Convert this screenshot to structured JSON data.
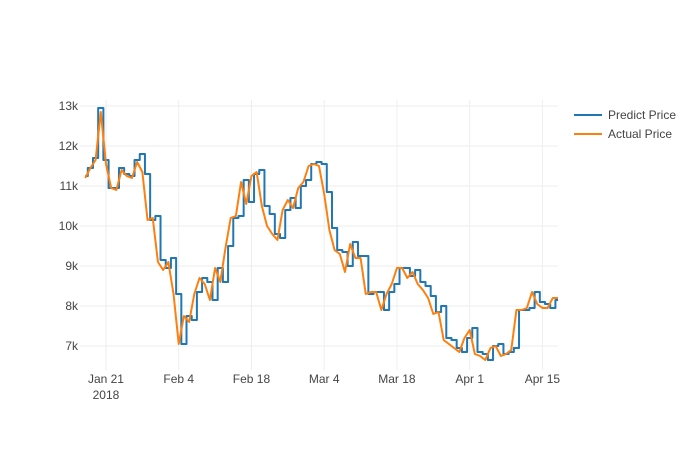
{
  "chart_data": {
    "type": "line",
    "xaxis": {
      "type": "date",
      "range": [
        "2018-01-16",
        "2018-04-18"
      ],
      "ticks": [
        {
          "date": "2018-01-21",
          "label": "Jan 21",
          "sublabel": "2018"
        },
        {
          "date": "2018-02-04",
          "label": "Feb 4",
          "sublabel": ""
        },
        {
          "date": "2018-02-18",
          "label": "Feb 18",
          "sublabel": ""
        },
        {
          "date": "2018-03-04",
          "label": "Mar 4",
          "sublabel": ""
        },
        {
          "date": "2018-03-18",
          "label": "Mar 18",
          "sublabel": ""
        },
        {
          "date": "2018-04-01",
          "label": "Apr 1",
          "sublabel": ""
        },
        {
          "date": "2018-04-15",
          "label": "Apr 15",
          "sublabel": ""
        }
      ]
    },
    "yaxis": {
      "range": [
        6400,
        13150
      ],
      "ticks": [
        {
          "value": 7000,
          "label": "7k"
        },
        {
          "value": 8000,
          "label": "8k"
        },
        {
          "value": 9000,
          "label": "9k"
        },
        {
          "value": 10000,
          "label": "10k"
        },
        {
          "value": 11000,
          "label": "11k"
        },
        {
          "value": 12000,
          "label": "12k"
        },
        {
          "value": 13000,
          "label": "13k"
        }
      ]
    },
    "grid": true,
    "legend_position": "top-right",
    "series": [
      {
        "name": "Predict Price",
        "color": "#1f77b4",
        "shape": "step",
        "x": [
          "2018-01-17",
          "2018-01-18",
          "2018-01-19",
          "2018-01-20",
          "2018-01-21",
          "2018-01-22",
          "2018-01-23",
          "2018-01-24",
          "2018-01-25",
          "2018-01-26",
          "2018-01-27",
          "2018-01-28",
          "2018-01-29",
          "2018-01-30",
          "2018-01-31",
          "2018-02-01",
          "2018-02-02",
          "2018-02-03",
          "2018-02-04",
          "2018-02-05",
          "2018-02-06",
          "2018-02-07",
          "2018-02-08",
          "2018-02-09",
          "2018-02-10",
          "2018-02-11",
          "2018-02-12",
          "2018-02-13",
          "2018-02-14",
          "2018-02-15",
          "2018-02-16",
          "2018-02-17",
          "2018-02-18",
          "2018-02-19",
          "2018-02-20",
          "2018-02-21",
          "2018-02-22",
          "2018-02-23",
          "2018-02-24",
          "2018-02-25",
          "2018-02-26",
          "2018-02-27",
          "2018-02-28",
          "2018-03-01",
          "2018-03-02",
          "2018-03-03",
          "2018-03-04",
          "2018-03-05",
          "2018-03-06",
          "2018-03-07",
          "2018-03-08",
          "2018-03-09",
          "2018-03-10",
          "2018-03-11",
          "2018-03-12",
          "2018-03-13",
          "2018-03-14",
          "2018-03-15",
          "2018-03-16",
          "2018-03-17",
          "2018-03-18",
          "2018-03-19",
          "2018-03-20",
          "2018-03-21",
          "2018-03-22",
          "2018-03-23",
          "2018-03-24",
          "2018-03-25",
          "2018-03-26",
          "2018-03-27",
          "2018-03-28",
          "2018-03-29",
          "2018-03-30",
          "2018-03-31",
          "2018-04-01",
          "2018-04-02",
          "2018-04-03",
          "2018-04-04",
          "2018-04-05",
          "2018-04-06",
          "2018-04-07",
          "2018-04-08",
          "2018-04-09",
          "2018-04-10",
          "2018-04-11",
          "2018-04-12",
          "2018-04-13",
          "2018-04-14",
          "2018-04-15",
          "2018-04-16",
          "2018-04-17",
          "2018-04-18"
        ],
        "y": [
          11250,
          11450,
          11700,
          12950,
          11650,
          10950,
          10950,
          11450,
          11300,
          11250,
          11650,
          11800,
          11300,
          10150,
          10250,
          9150,
          8950,
          9200,
          8300,
          7050,
          7750,
          7650,
          8350,
          8700,
          8600,
          8150,
          8950,
          8600,
          9500,
          10200,
          10250,
          11150,
          10600,
          11300,
          11400,
          10500,
          10300,
          9800,
          9700,
          10400,
          10700,
          10450,
          11000,
          11150,
          11550,
          11600,
          11550,
          10850,
          9950,
          9400,
          9350,
          9000,
          9600,
          9250,
          9250,
          8300,
          8350,
          8350,
          7900,
          8350,
          8550,
          8950,
          8950,
          8750,
          8900,
          8600,
          8500,
          8250,
          7850,
          8000,
          7200,
          7150,
          6950,
          6850,
          7200,
          7450,
          6850,
          6800,
          6650,
          7000,
          7050,
          6800,
          6850,
          6950,
          7900,
          7900,
          7950,
          8350,
          8100,
          8050,
          7950,
          8150
        ]
      },
      {
        "name": "Actual Price",
        "color": "#ff7f0e",
        "shape": "linear",
        "x": [
          "2018-01-17",
          "2018-01-18",
          "2018-01-19",
          "2018-01-20",
          "2018-01-21",
          "2018-01-22",
          "2018-01-23",
          "2018-01-24",
          "2018-01-25",
          "2018-01-26",
          "2018-01-27",
          "2018-01-28",
          "2018-01-29",
          "2018-01-30",
          "2018-01-31",
          "2018-02-01",
          "2018-02-02",
          "2018-02-03",
          "2018-02-04",
          "2018-02-05",
          "2018-02-06",
          "2018-02-07",
          "2018-02-08",
          "2018-02-09",
          "2018-02-10",
          "2018-02-11",
          "2018-02-12",
          "2018-02-13",
          "2018-02-14",
          "2018-02-15",
          "2018-02-16",
          "2018-02-17",
          "2018-02-18",
          "2018-02-19",
          "2018-02-20",
          "2018-02-21",
          "2018-02-22",
          "2018-02-23",
          "2018-02-24",
          "2018-02-25",
          "2018-02-26",
          "2018-02-27",
          "2018-02-28",
          "2018-03-01",
          "2018-03-02",
          "2018-03-03",
          "2018-03-04",
          "2018-03-05",
          "2018-03-06",
          "2018-03-07",
          "2018-03-08",
          "2018-03-09",
          "2018-03-10",
          "2018-03-11",
          "2018-03-12",
          "2018-03-13",
          "2018-03-14",
          "2018-03-15",
          "2018-03-16",
          "2018-03-17",
          "2018-03-18",
          "2018-03-19",
          "2018-03-20",
          "2018-03-21",
          "2018-03-22",
          "2018-03-23",
          "2018-03-24",
          "2018-03-25",
          "2018-03-26",
          "2018-03-27",
          "2018-03-28",
          "2018-03-29",
          "2018-03-30",
          "2018-03-31",
          "2018-04-01",
          "2018-04-02",
          "2018-04-03",
          "2018-04-04",
          "2018-04-05",
          "2018-04-06",
          "2018-04-07",
          "2018-04-08",
          "2018-04-09",
          "2018-04-10",
          "2018-04-11",
          "2018-04-12",
          "2018-04-13",
          "2018-04-14",
          "2018-04-15",
          "2018-04-16",
          "2018-04-17",
          "2018-04-18"
        ],
        "y": [
          11200,
          11450,
          11650,
          12850,
          11550,
          10950,
          10900,
          11400,
          11250,
          11200,
          11600,
          11350,
          10150,
          10200,
          9100,
          8900,
          9100,
          8300,
          7050,
          7750,
          7600,
          8300,
          8700,
          8550,
          8150,
          8950,
          8600,
          9450,
          10200,
          10250,
          11100,
          10550,
          11250,
          11350,
          10500,
          10000,
          9800,
          9650,
          10400,
          10650,
          10450,
          10950,
          11100,
          11500,
          11550,
          11500,
          10800,
          9900,
          9400,
          9300,
          8850,
          9550,
          9200,
          9200,
          8300,
          8350,
          8350,
          7900,
          8300,
          8550,
          8950,
          8950,
          8700,
          8850,
          8550,
          8400,
          8200,
          7800,
          7850,
          7150,
          7050,
          6950,
          6850,
          7200,
          7400,
          6800,
          6750,
          6650,
          6950,
          7000,
          6750,
          6800,
          6900,
          7900,
          7900,
          7950,
          8350,
          8050,
          7950,
          7950,
          8200,
          8200
        ]
      }
    ]
  }
}
